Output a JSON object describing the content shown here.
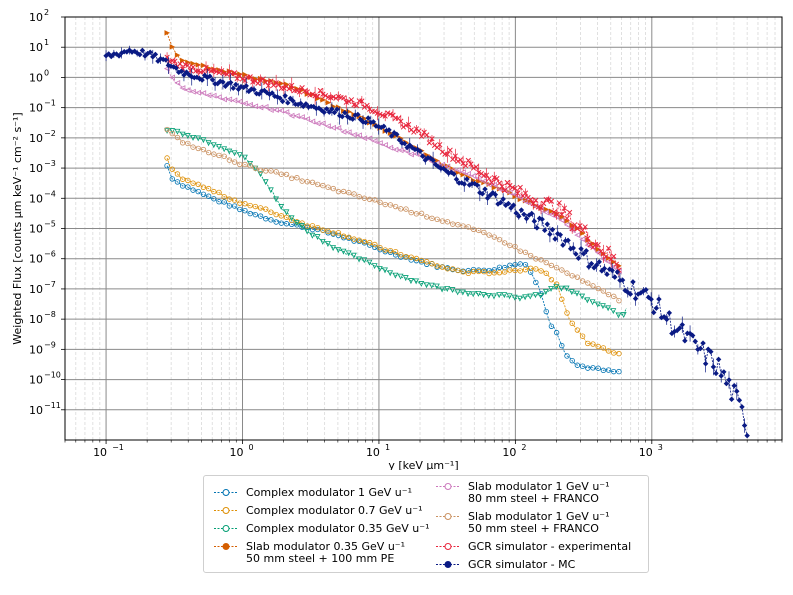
{
  "chart_data": {
    "type": "line",
    "xscale": "log",
    "yscale": "log",
    "xlabel": "y [keV µm⁻¹]",
    "ylabel": "Weighted Flux [counts µm keV⁻¹ cm⁻² s⁻¹]",
    "xlim": [
      0.05,
      9000
    ],
    "ylim": [
      1e-12,
      100
    ],
    "x_ticks": [
      {
        "value": 0.1,
        "base": "10",
        "exp": "−1"
      },
      {
        "value": 1,
        "base": "10",
        "exp": "0"
      },
      {
        "value": 10,
        "base": "10",
        "exp": "1"
      },
      {
        "value": 100,
        "base": "10",
        "exp": "2"
      },
      {
        "value": 1000,
        "base": "10",
        "exp": "3"
      }
    ],
    "y_ticks": [
      {
        "value": 1e-11,
        "base": "10",
        "exp": "−11"
      },
      {
        "value": 1e-10,
        "base": "10",
        "exp": "−10"
      },
      {
        "value": 1e-09,
        "base": "10",
        "exp": "−9"
      },
      {
        "value": 1e-08,
        "base": "10",
        "exp": "−8"
      },
      {
        "value": 1e-07,
        "base": "10",
        "exp": "−7"
      },
      {
        "value": 1e-06,
        "base": "10",
        "exp": "−6"
      },
      {
        "value": 1e-05,
        "base": "10",
        "exp": "−5"
      },
      {
        "value": 0.0001,
        "base": "10",
        "exp": "−4"
      },
      {
        "value": 0.001,
        "base": "10",
        "exp": "−3"
      },
      {
        "value": 0.01,
        "base": "10",
        "exp": "−2"
      },
      {
        "value": 0.1,
        "base": "10",
        "exp": "−1"
      },
      {
        "value": 1,
        "base": "10",
        "exp": "0"
      },
      {
        "value": 10,
        "base": "10",
        "exp": "1"
      },
      {
        "value": 100,
        "base": "10",
        "exp": "2"
      }
    ],
    "grid": true,
    "series": [
      {
        "name": "Complex modulator 1 GeV u⁻¹",
        "color": "#0173b2",
        "marker": "circle",
        "errorbars": false,
        "points": [
          [
            0.28,
            0.0012
          ],
          [
            0.3,
            0.0005
          ],
          [
            0.35,
            0.0003
          ],
          [
            0.45,
            0.00018
          ],
          [
            0.6,
            0.0001
          ],
          [
            0.8,
            6e-05
          ],
          [
            1,
            4e-05
          ],
          [
            1.5,
            2.2e-05
          ],
          [
            2,
            1.5e-05
          ],
          [
            3,
            1.1e-05
          ],
          [
            5,
            6e-06
          ],
          [
            8,
            3e-06
          ],
          [
            12,
            1.6e-06
          ],
          [
            20,
            8e-07
          ],
          [
            30,
            5e-07
          ],
          [
            45,
            4e-07
          ],
          [
            70,
            4.5e-07
          ],
          [
            100,
            6.5e-07
          ],
          [
            120,
            7e-07
          ],
          [
            150,
            1e-07
          ],
          [
            180,
            7e-09
          ],
          [
            200,
            4e-09
          ],
          [
            230,
            8e-10
          ],
          [
            280,
            3e-10
          ],
          [
            350,
            2.5e-10
          ],
          [
            450,
            2e-10
          ],
          [
            600,
            1.7e-10
          ]
        ]
      },
      {
        "name": "Complex modulator 0.7 GeV u⁻¹",
        "color": "#de8f05",
        "marker": "circle",
        "errorbars": false,
        "points": [
          [
            0.28,
            0.002
          ],
          [
            0.3,
            0.0009
          ],
          [
            0.35,
            0.0005
          ],
          [
            0.45,
            0.0003
          ],
          [
            0.6,
            0.00018
          ],
          [
            0.8,
            0.0001
          ],
          [
            1,
            7e-05
          ],
          [
            1.5,
            4e-05
          ],
          [
            2,
            2.5e-05
          ],
          [
            3,
            1.3e-05
          ],
          [
            5,
            7e-06
          ],
          [
            8,
            3.5e-06
          ],
          [
            12,
            1.8e-06
          ],
          [
            20,
            9e-07
          ],
          [
            30,
            5e-07
          ],
          [
            45,
            3.5e-07
          ],
          [
            70,
            3.5e-07
          ],
          [
            100,
            4e-07
          ],
          [
            130,
            5e-07
          ],
          [
            160,
            4e-07
          ],
          [
            200,
            1.5e-07
          ],
          [
            250,
            1e-08
          ],
          [
            300,
            3e-09
          ],
          [
            350,
            1.5e-09
          ],
          [
            450,
            1e-09
          ],
          [
            600,
            7e-10
          ]
        ]
      },
      {
        "name": "Complex modulator 0.35 GeV u⁻¹",
        "color": "#029e73",
        "marker": "triangle-down",
        "errorbars": false,
        "points": [
          [
            0.28,
            0.018
          ],
          [
            0.35,
            0.015
          ],
          [
            0.5,
            0.009
          ],
          [
            0.7,
            0.005
          ],
          [
            1,
            0.0025
          ],
          [
            1.3,
            0.0008
          ],
          [
            1.6,
            0.0002
          ],
          [
            2,
            4e-05
          ],
          [
            3,
            8e-06
          ],
          [
            5,
            2e-06
          ],
          [
            8,
            8e-07
          ],
          [
            12,
            3.5e-07
          ],
          [
            20,
            1.6e-07
          ],
          [
            30,
            1e-07
          ],
          [
            50,
            7e-08
          ],
          [
            80,
            6e-08
          ],
          [
            100,
            5e-08
          ],
          [
            150,
            6e-08
          ],
          [
            200,
            1.2e-07
          ],
          [
            250,
            9e-08
          ],
          [
            350,
            4e-08
          ],
          [
            500,
            2e-08
          ],
          [
            620,
            1.2e-08
          ],
          [
            650,
            2.5e-08
          ]
        ]
      },
      {
        "name": "Slab modulator 0.35 GeV u⁻¹\n50 mm steel + 100 mm PE",
        "color": "#d55e00",
        "marker": "triangle-right",
        "errorbars": false,
        "points": [
          [
            0.28,
            30
          ],
          [
            0.3,
            12
          ],
          [
            0.35,
            4
          ],
          [
            0.5,
            2.5
          ],
          [
            1,
            1.2
          ],
          [
            2,
            0.6
          ],
          [
            3,
            0.3
          ],
          [
            5,
            0.1
          ],
          [
            8,
            0.04
          ],
          [
            12,
            0.015
          ],
          [
            20,
            0.004
          ],
          [
            30,
            0.0012
          ],
          [
            50,
            0.0004
          ],
          [
            80,
            0.0002
          ],
          [
            120,
            8e-05
          ],
          [
            200,
            3e-05
          ],
          [
            300,
            8e-06
          ],
          [
            400,
            2e-06
          ],
          [
            600,
            5e-07
          ]
        ]
      },
      {
        "name": "Slab modulator 1 GeV u⁻¹\n80 mm steel + FRANCO",
        "color": "#cc78bc",
        "marker": "triangle-left",
        "errorbars": false,
        "points": [
          [
            0.28,
            1.8
          ],
          [
            0.3,
            1
          ],
          [
            0.35,
            0.5
          ],
          [
            0.5,
            0.3
          ],
          [
            1,
            0.15
          ],
          [
            2,
            0.07
          ],
          [
            3,
            0.04
          ],
          [
            5,
            0.02
          ],
          [
            8,
            0.01
          ],
          [
            12,
            0.005
          ],
          [
            20,
            0.0025
          ],
          [
            30,
            0.0012
          ],
          [
            50,
            0.0005
          ],
          [
            80,
            0.0002
          ],
          [
            120,
            8e-05
          ],
          [
            200,
            2.5e-05
          ],
          [
            300,
            5e-06
          ],
          [
            450,
            1e-06
          ],
          [
            600,
            3e-07
          ]
        ]
      },
      {
        "name": "Slab modulator 1 GeV u⁻¹\n50 mm steel + FRANCO",
        "color": "#ca9161",
        "marker": "circle",
        "errorbars": false,
        "points": [
          [
            0.28,
            0.018
          ],
          [
            0.35,
            0.008
          ],
          [
            0.5,
            0.004
          ],
          [
            0.8,
            0.002
          ],
          [
            1,
            0.0013
          ],
          [
            2,
            0.0006
          ],
          [
            3,
            0.00035
          ],
          [
            5,
            0.00018
          ],
          [
            8,
            0.0001
          ],
          [
            12,
            6e-05
          ],
          [
            20,
            3e-05
          ],
          [
            30,
            1.8e-05
          ],
          [
            50,
            9e-06
          ],
          [
            80,
            4e-06
          ],
          [
            120,
            1.5e-06
          ],
          [
            200,
            5e-07
          ],
          [
            300,
            2e-07
          ],
          [
            400,
            1e-07
          ],
          [
            600,
            4e-08
          ]
        ]
      },
      {
        "name": "GCR simulator - experimental",
        "color": "#e8253c",
        "marker": "x",
        "errorbars": true,
        "points": [
          [
            0.28,
            4
          ],
          [
            0.35,
            2.5
          ],
          [
            0.5,
            1.8
          ],
          [
            0.8,
            1.2
          ],
          [
            1,
            1
          ],
          [
            1.5,
            0.7
          ],
          [
            2,
            0.5
          ],
          [
            3,
            0.35
          ],
          [
            5,
            0.22
          ],
          [
            8,
            0.12
          ],
          [
            12,
            0.05
          ],
          [
            20,
            0.015
          ],
          [
            30,
            0.004
          ],
          [
            50,
            0.001
          ],
          [
            80,
            0.0003
          ],
          [
            120,
            0.00012
          ],
          [
            200,
            5e-05
          ],
          [
            300,
            1e-05
          ],
          [
            400,
            3e-06
          ],
          [
            600,
            5e-07
          ]
        ]
      },
      {
        "name": "GCR simulator - MC",
        "color": "#0a1a84",
        "marker": "diamond",
        "errorbars": true,
        "points": [
          [
            0.1,
            5
          ],
          [
            0.12,
            6
          ],
          [
            0.15,
            8
          ],
          [
            0.2,
            6
          ],
          [
            0.28,
            3
          ],
          [
            0.35,
            1.6
          ],
          [
            0.5,
            1
          ],
          [
            0.8,
            0.6
          ],
          [
            1,
            0.45
          ],
          [
            1.5,
            0.3
          ],
          [
            2,
            0.2
          ],
          [
            3,
            0.12
          ],
          [
            5,
            0.07
          ],
          [
            8,
            0.04
          ],
          [
            12,
            0.015
          ],
          [
            20,
            0.003
          ],
          [
            30,
            0.0008
          ],
          [
            50,
            0.00025
          ],
          [
            80,
            8e-05
          ],
          [
            120,
            2.5e-05
          ],
          [
            200,
            7e-06
          ],
          [
            300,
            1.5e-06
          ],
          [
            500,
            3e-07
          ],
          [
            700,
            1.2e-07
          ],
          [
            1000,
            4e-08
          ],
          [
            1500,
            5e-09
          ],
          [
            2000,
            1.5e-09
          ],
          [
            3000,
            3e-10
          ],
          [
            4000,
            3e-11
          ],
          [
            5000,
            3e-12
          ]
        ]
      }
    ]
  }
}
